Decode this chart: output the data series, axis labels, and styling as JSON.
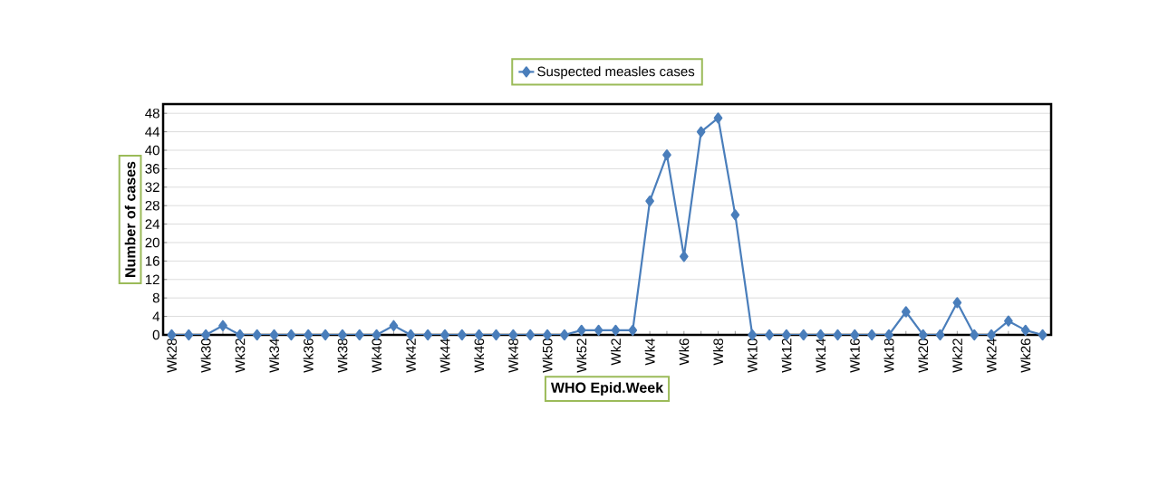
{
  "chart_data": {
    "type": "line",
    "xlabel": "WHO Epid.Week",
    "ylabel": "Number of cases",
    "categories": [
      "Wk28",
      null,
      "Wk30",
      null,
      "Wk32",
      null,
      "Wk34",
      null,
      "Wk36",
      null,
      "Wk38",
      null,
      "Wk40",
      null,
      "Wk42",
      null,
      "Wk44",
      null,
      "Wk46",
      null,
      "Wk48",
      null,
      "Wk50",
      null,
      "Wk52",
      null,
      "Wk2",
      null,
      "Wk4",
      null,
      "Wk6",
      null,
      "Wk8",
      null,
      "Wk10",
      null,
      "Wk12",
      null,
      "Wk14",
      null,
      "Wk16",
      null,
      "Wk18",
      null,
      "Wk20",
      null,
      "Wk22",
      null,
      "Wk24",
      null,
      "Wk26",
      null
    ],
    "series": [
      {
        "name": "Suspected measles cases",
        "color": "#4a7ebb",
        "values": [
          0,
          0,
          0,
          2,
          0,
          0,
          0,
          0,
          0,
          0,
          0,
          0,
          0,
          2,
          0,
          0,
          0,
          0,
          0,
          0,
          0,
          0,
          0,
          0,
          1,
          1,
          1,
          1,
          29,
          39,
          17,
          44,
          47,
          26,
          0,
          0,
          0,
          0,
          0,
          0,
          0,
          0,
          0,
          5,
          0,
          0,
          7,
          0,
          0,
          3,
          1,
          0
        ]
      }
    ],
    "ylim": [
      0,
      50
    ],
    "yticks": [
      0,
      4,
      8,
      12,
      16,
      20,
      24,
      28,
      32,
      36,
      40,
      44,
      48
    ],
    "grid": "y",
    "legend": "top",
    "marker": "diamond",
    "line_style": "solid"
  }
}
